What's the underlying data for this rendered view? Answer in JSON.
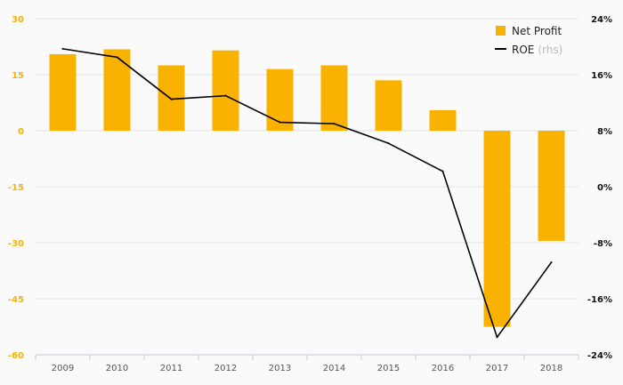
{
  "colors": {
    "bar": "#f9b200",
    "line": "#000000",
    "grid": "#e4e4e4",
    "left_axis_text": "#f5b400",
    "right_axis_text": "#111111",
    "x_axis_text": "#555555",
    "axis_line": "#c8c8d8"
  },
  "legend": {
    "bar_label": "Net Profit",
    "line_label": "ROE",
    "line_suffix": "(rhs)"
  },
  "chart_data": {
    "type": "bar",
    "categories": [
      "2009",
      "2010",
      "2011",
      "2012",
      "2013",
      "2014",
      "2015",
      "2016",
      "2017",
      "2018"
    ],
    "series": [
      {
        "name": "Net Profit",
        "type": "bar",
        "axis": "left",
        "values": [
          20.5,
          21.8,
          17.5,
          21.5,
          16.5,
          17.5,
          13.5,
          5.5,
          -52.5,
          -29.5
        ]
      },
      {
        "name": "ROE",
        "type": "line",
        "axis": "right",
        "unit": "%",
        "values": [
          19.7,
          18.5,
          12.5,
          13.0,
          9.2,
          9.0,
          6.2,
          2.2,
          -21.5,
          -10.8
        ]
      }
    ],
    "ylim_left": [
      -60,
      30
    ],
    "yticks_left": [
      "30",
      "15",
      "0",
      "-15",
      "-30",
      "-45",
      "-60"
    ],
    "ylim_right": [
      -24,
      24
    ],
    "yticks_right": [
      "24%",
      "16%",
      "8%",
      "0%",
      "-8%",
      "-16%",
      "-24%"
    ],
    "grid": true,
    "legend_position": "top-right"
  }
}
